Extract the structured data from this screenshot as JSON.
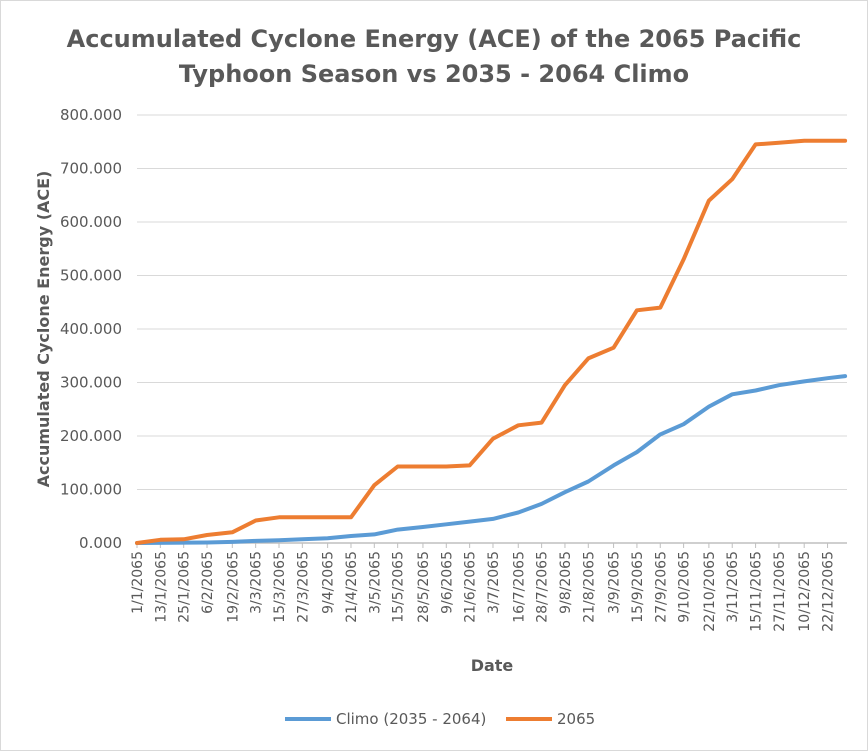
{
  "chart_data": {
    "type": "line",
    "title": "Accumulated Cyclone Energy (ACE) of the 2065 Pacific Typhoon Season vs 2035 - 2064 Climo",
    "title_lines": [
      "Accumulated Cyclone Energy (ACE) of the 2065 Pacific",
      "Typhoon Season vs 2035 - 2064 Climo"
    ],
    "xlabel": "Date",
    "ylabel": "Accumulated Cyclone Energy (ACE)",
    "ylim": [
      0,
      800
    ],
    "yticks": [
      0,
      100,
      200,
      300,
      400,
      500,
      600,
      700,
      800
    ],
    "ytick_labels": [
      "0.000",
      "100.000",
      "200.000",
      "300.000",
      "400.000",
      "500.000",
      "600.000",
      "700.000",
      "800.000"
    ],
    "xticks": [
      "1/1/2065",
      "13/1/2065",
      "25/1/2065",
      "6/2/2065",
      "19/2/2065",
      "3/3/2065",
      "15/3/2065",
      "27/3/2065",
      "9/4/2065",
      "21/4/2065",
      "3/5/2065",
      "15/5/2065",
      "28/5/2065",
      "9/6/2065",
      "21/6/2065",
      "3/7/2065",
      "16/7/2065",
      "28/7/2065",
      "9/8/2065",
      "21/8/2065",
      "3/9/2065",
      "15/9/2065",
      "27/9/2065",
      "9/10/2065",
      "22/10/2065",
      "3/11/2065",
      "15/11/2065",
      "27/11/2065",
      "10/12/2065",
      "22/12/2065"
    ],
    "grid": true,
    "legend_position": "bottom",
    "series": [
      {
        "name": "Climo (2035 - 2064)",
        "color": "#5b9bd5",
        "x": [
          "1/1/2065",
          "6/2/2065",
          "19/2/2065",
          "3/3/2065",
          "15/3/2065",
          "27/3/2065",
          "9/4/2065",
          "21/4/2065",
          "3/5/2065",
          "15/5/2065",
          "28/5/2065",
          "9/6/2065",
          "21/6/2065",
          "3/7/2065",
          "16/7/2065",
          "28/7/2065",
          "9/8/2065",
          "21/8/2065",
          "3/9/2065",
          "15/9/2065",
          "27/9/2065",
          "9/10/2065",
          "22/10/2065",
          "3/11/2065",
          "15/11/2065",
          "27/11/2065",
          "10/12/2065",
          "22/12/2065",
          "31/12/2065"
        ],
        "values": [
          0,
          1,
          2,
          4,
          5,
          7,
          9,
          13,
          16,
          25,
          30,
          35,
          40,
          45,
          57,
          73,
          95,
          115,
          145,
          170,
          203,
          222,
          255,
          278,
          285,
          295,
          302,
          308,
          312
        ]
      },
      {
        "name": "2065",
        "color": "#ed7d31",
        "x": [
          "1/1/2065",
          "13/1/2065",
          "25/1/2065",
          "6/2/2065",
          "19/2/2065",
          "3/3/2065",
          "15/3/2065",
          "27/3/2065",
          "9/4/2065",
          "21/4/2065",
          "3/5/2065",
          "15/5/2065",
          "28/5/2065",
          "9/6/2065",
          "21/6/2065",
          "3/7/2065",
          "16/7/2065",
          "28/7/2065",
          "9/8/2065",
          "21/8/2065",
          "3/9/2065",
          "15/9/2065",
          "27/9/2065",
          "9/10/2065",
          "22/10/2065",
          "3/11/2065",
          "15/11/2065",
          "27/11/2065",
          "10/12/2065",
          "22/12/2065",
          "31/12/2065"
        ],
        "values": [
          0,
          6,
          7,
          15,
          20,
          42,
          48,
          48,
          48,
          48,
          108,
          143,
          143,
          143,
          145,
          195,
          220,
          225,
          295,
          345,
          365,
          435,
          440,
          530,
          640,
          680,
          745,
          748,
          752,
          752,
          752
        ]
      }
    ]
  }
}
